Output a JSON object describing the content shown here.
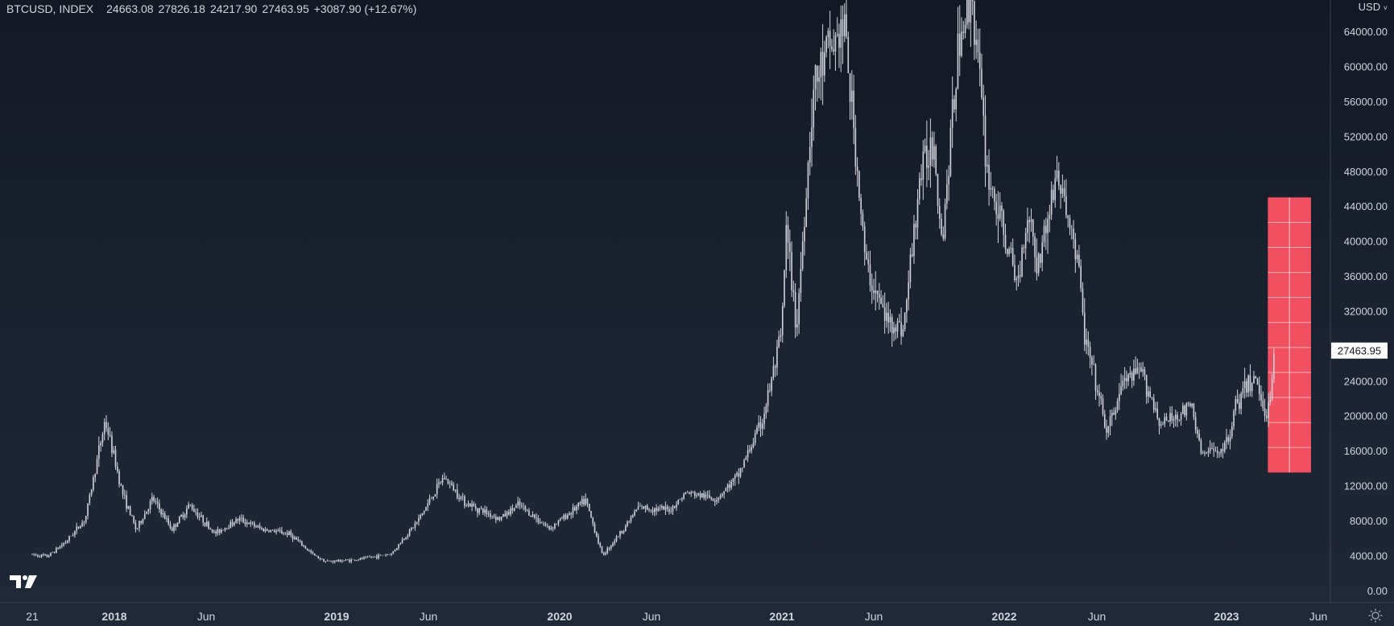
{
  "legend": {
    "symbol": "BTCUSD, INDEX",
    "open": "24663.08",
    "high": "27826.18",
    "low": "24217.90",
    "close": "27463.95",
    "change": "+3087.90 (+12.67%)"
  },
  "axis_currency": "USD",
  "icons": {
    "logo": "tradingview-logo-icon",
    "settings": "gear-icon",
    "currency_dropdown": "chevron-down-icon"
  },
  "colors": {
    "candle": "#d1d4dc",
    "volume_block": "#f0505f",
    "axis_text": "#d1d4dc",
    "price_label_bg": "#ffffff",
    "price_label_text": "#131722"
  },
  "chart_data": {
    "type": "line",
    "title": "",
    "xlabel": "",
    "ylabel": "",
    "ylim": [
      -1400,
      67600
    ],
    "grid": false,
    "y_ticks": [
      0,
      4000,
      8000,
      12000,
      16000,
      20000,
      24000,
      28000,
      32000,
      36000,
      40000,
      44000,
      48000,
      52000,
      56000,
      60000,
      64000
    ],
    "y_tick_labels": [
      "0.00",
      "4000.00",
      "8000.00",
      "12000.00",
      "16000.00",
      "20000.00",
      "24000.00",
      "28000.00",
      "32000.00",
      "36000.00",
      "40000.00",
      "44000.00",
      "48000.00",
      "52000.00",
      "56000.00",
      "60000.00",
      "64000.00"
    ],
    "x_tick_labels": [
      "21",
      "2018",
      "Jun",
      "2019",
      "Jun",
      "2020",
      "Jun",
      "2021",
      "Jun",
      "2022",
      "Jun",
      "2023",
      "Jun"
    ],
    "x_tick_dates": [
      "2017-08-21",
      "2018-01-01",
      "2018-06-01",
      "2019-01-01",
      "2019-06-01",
      "2020-01-01",
      "2020-06-01",
      "2021-01-01",
      "2021-06-01",
      "2022-01-01",
      "2022-06-01",
      "2023-01-01",
      "2023-06-01"
    ],
    "last_price_label": "27463.95",
    "last_price": 27463.95,
    "series": [
      {
        "x": [
          "2017-08-21",
          "2017-09-15",
          "2017-10-15",
          "2017-11-15",
          "2017-12-17",
          "2018-01-15",
          "2018-02-06",
          "2018-03-05",
          "2018-04-06",
          "2018-05-05",
          "2018-06-15",
          "2018-07-25",
          "2018-09-01",
          "2018-10-15",
          "2018-11-25",
          "2018-12-15",
          "2019-02-01",
          "2019-04-01",
          "2019-05-15",
          "2019-06-26",
          "2019-08-01",
          "2019-09-25",
          "2019-10-26",
          "2019-12-15",
          "2020-02-13",
          "2020-03-12",
          "2020-04-15",
          "2020-05-10",
          "2020-07-01",
          "2020-07-28",
          "2020-09-15",
          "2020-10-20",
          "2020-11-30",
          "2020-12-31",
          "2021-01-08",
          "2021-01-25",
          "2021-02-21",
          "2021-03-13",
          "2021-04-14",
          "2021-05-19",
          "2021-06-22",
          "2021-07-20",
          "2021-08-15",
          "2021-09-07",
          "2021-09-21",
          "2021-10-20",
          "2021-11-10",
          "2021-12-04",
          "2022-01-22",
          "2022-02-10",
          "2022-02-24",
          "2022-03-28",
          "2022-05-01",
          "2022-05-12",
          "2022-06-18",
          "2022-07-15",
          "2022-08-14",
          "2022-09-15",
          "2022-11-05",
          "2022-11-21",
          "2022-12-31",
          "2023-01-15",
          "2023-02-15",
          "2023-03-10",
          "2023-03-21"
        ],
        "values": [
          4100,
          3900,
          5600,
          8200,
          19500,
          11000,
          6900,
          10500,
          7000,
          9800,
          6500,
          8200,
          7000,
          6500,
          4000,
          3300,
          3500,
          4200,
          8000,
          13000,
          10000,
          8200,
          9800,
          7100,
          10300,
          4000,
          7000,
          9500,
          9200,
          11200,
          10500,
          13000,
          19500,
          29000,
          41000,
          30000,
          57000,
          61000,
          64500,
          37000,
          31000,
          30000,
          47000,
          52000,
          40000,
          64000,
          68000,
          48000,
          35000,
          44000,
          37000,
          47800,
          38000,
          29000,
          18000,
          24000,
          25000,
          19000,
          21000,
          15500,
          16500,
          21000,
          24500,
          20000,
          27463
        ]
      }
    ],
    "volume_block": {
      "x_start": "2023-03-10",
      "x_end": "2023-05-20",
      "y_low": 13500,
      "y_high": 45000
    }
  }
}
